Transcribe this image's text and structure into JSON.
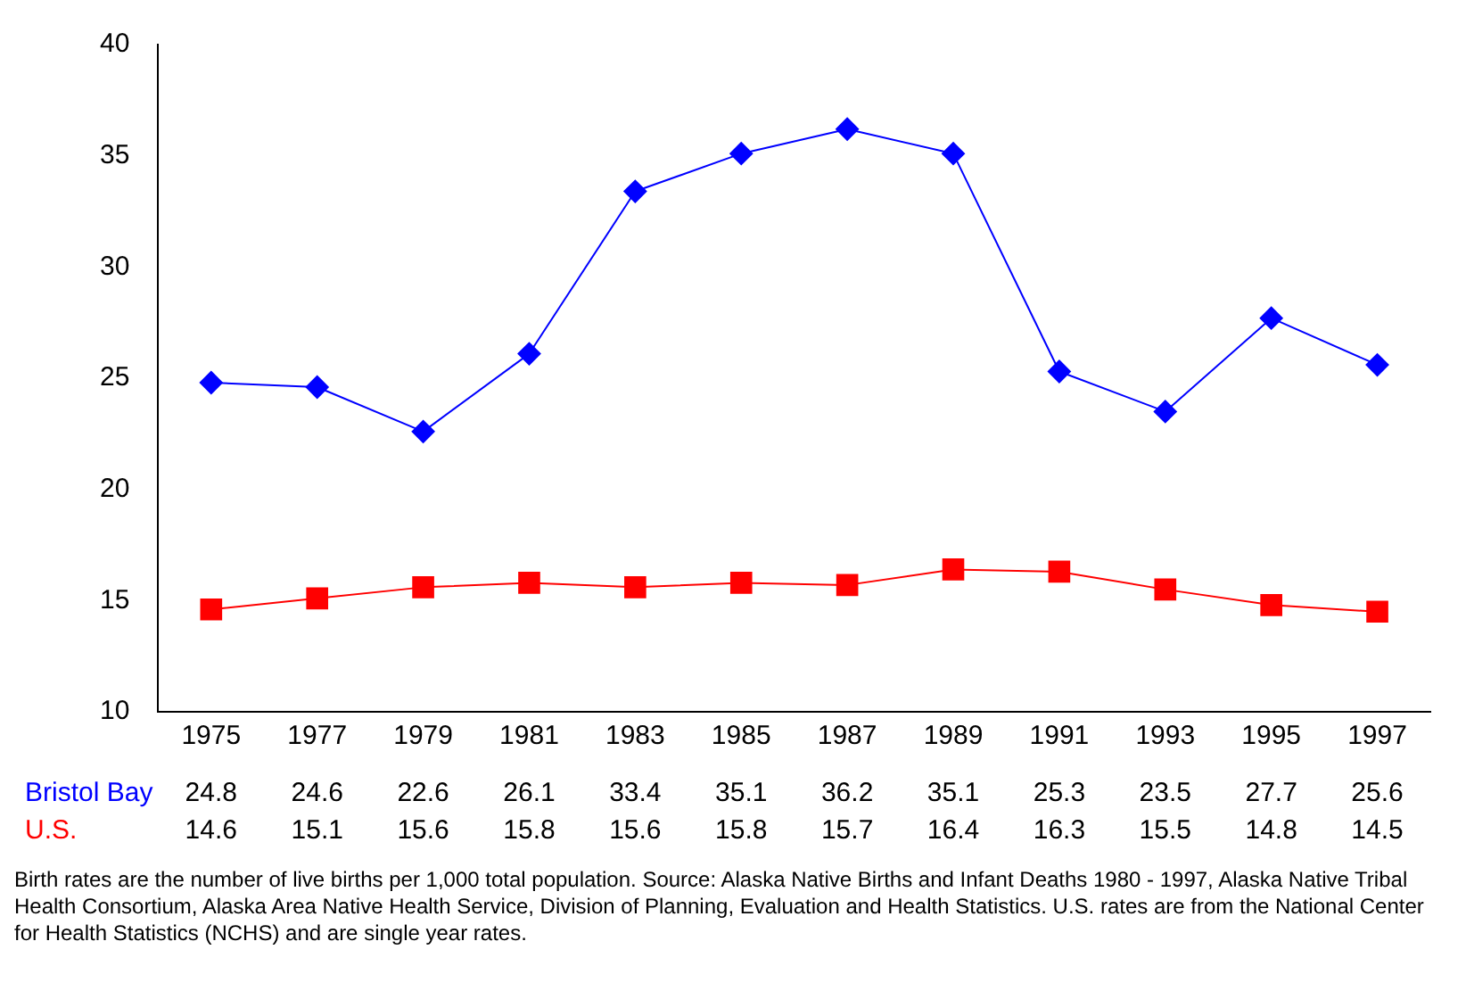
{
  "chart_data": {
    "type": "line",
    "categories": [
      "1975",
      "1977",
      "1979",
      "1981",
      "1983",
      "1985",
      "1987",
      "1989",
      "1991",
      "1993",
      "1995",
      "1997"
    ],
    "series": [
      {
        "name": "Bristol Bay",
        "color": "#0000ff",
        "marker": "diamond",
        "values": [
          24.8,
          24.6,
          22.6,
          26.1,
          33.4,
          35.1,
          36.2,
          35.1,
          25.3,
          23.5,
          27.7,
          25.6
        ]
      },
      {
        "name": "U.S.",
        "color": "#ff0000",
        "marker": "square",
        "values": [
          14.6,
          15.1,
          15.6,
          15.8,
          15.6,
          15.8,
          15.7,
          16.4,
          16.3,
          15.5,
          14.8,
          14.5
        ]
      }
    ],
    "ylim": [
      10,
      40
    ],
    "yticks": [
      10,
      15,
      20,
      25,
      30,
      35,
      40
    ],
    "grid": false,
    "legend": false,
    "data_labels": true,
    "annotations": [
      "Birth rates are the number of live births per 1,000 total population.  Source:  Alaska Native Births and Infant Deaths 1980 - 1997, Alaska Native Tribal Health Consortium, Alaska Area Native Health Service, Division of Planning, Evaluation and Health Statistics.  U.S. rates are from the National Center for Health Statistics (NCHS) and are single year rates."
    ]
  }
}
